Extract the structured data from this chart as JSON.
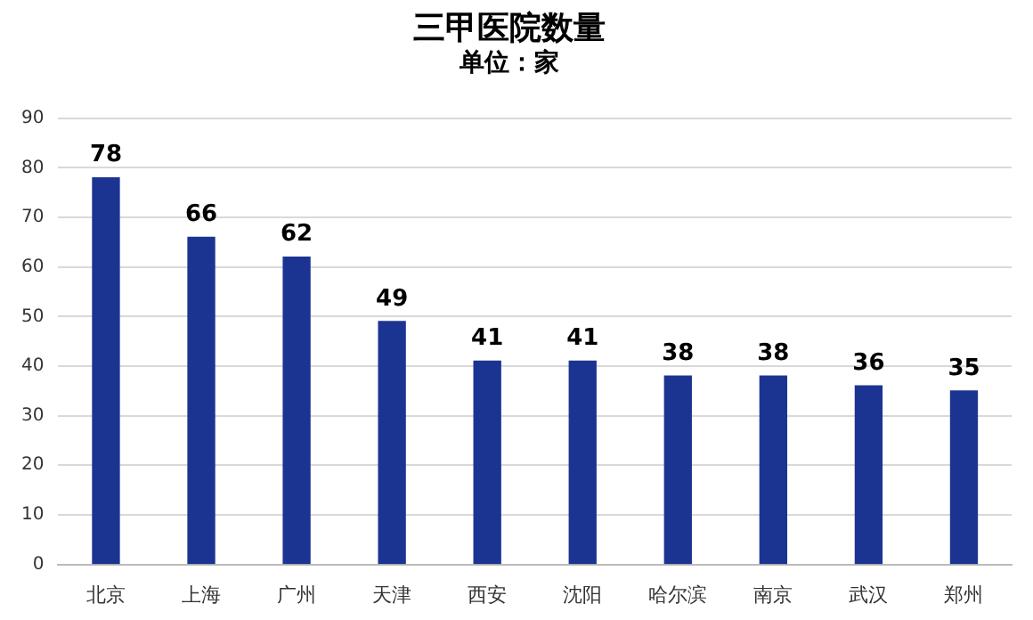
{
  "chart_data": {
    "type": "bar",
    "title": "三甲医院数量",
    "subtitle": "单位：家",
    "categories": [
      "北京",
      "上海",
      "广州",
      "天津",
      "西安",
      "沈阳",
      "哈尔滨",
      "南京",
      "武汉",
      "郑州"
    ],
    "values": [
      78,
      66,
      62,
      49,
      41,
      41,
      38,
      38,
      36,
      35
    ],
    "color": "#1c3491",
    "ylim": [
      0,
      90
    ],
    "yticks": [
      0,
      10,
      20,
      30,
      40,
      50,
      60,
      70,
      80,
      90
    ],
    "grid": "y",
    "data_labels": true
  }
}
